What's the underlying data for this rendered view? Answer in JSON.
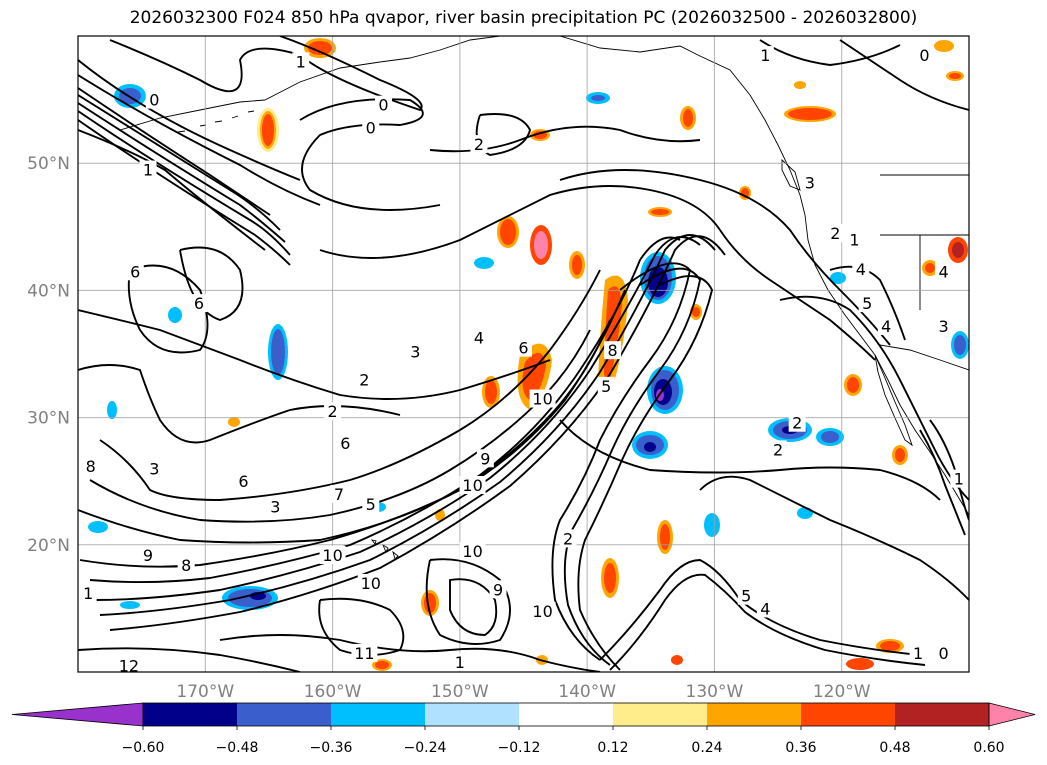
{
  "title": "2026032300 F024 850 hPa qvapor, river basin precipitation PC (2026032500 - 2026032800)",
  "map": {
    "lon_range": [
      180,
      110
    ],
    "lat_range": [
      10,
      60
    ],
    "lat_ticks": [
      {
        "value": 20,
        "label": "20°N"
      },
      {
        "value": 30,
        "label": "30°N"
      },
      {
        "value": 40,
        "label": "40°N"
      },
      {
        "value": 50,
        "label": "50°N"
      }
    ],
    "lon_ticks": [
      {
        "value": 170,
        "label": "170°W"
      },
      {
        "value": 160,
        "label": "160°W"
      },
      {
        "value": 150,
        "label": "150°W"
      },
      {
        "value": 140,
        "label": "140°W"
      },
      {
        "value": 130,
        "label": "130°W"
      },
      {
        "value": 120,
        "label": "120°W"
      }
    ],
    "grid": true
  },
  "colorbar": {
    "colors": [
      "#9932cc",
      "#00008b",
      "#3a5fcd",
      "#00bfff",
      "#b0e2ff",
      "#ffffff",
      "#ffec8b",
      "#ffa500",
      "#ff4500",
      "#b22222",
      "#ff82ab"
    ],
    "tick_labels": [
      "−0.60",
      "−0.48",
      "−0.36",
      "−0.24",
      "−0.12",
      "0.12",
      "0.24",
      "0.36",
      "0.48",
      "0.60"
    ],
    "extend": "both"
  },
  "contour_labels": [
    {
      "text": "1",
      "lon": 162.5,
      "lat": 58
    },
    {
      "text": "0",
      "lon": 174,
      "lat": 55
    },
    {
      "text": "0",
      "lon": 156,
      "lat": 54.6
    },
    {
      "text": "0",
      "lon": 157,
      "lat": 52.8
    },
    {
      "text": "2",
      "lon": 148.5,
      "lat": 51.5
    },
    {
      "text": "1",
      "lon": 174.5,
      "lat": 49.5
    },
    {
      "text": "6",
      "lon": 175.5,
      "lat": 41.5
    },
    {
      "text": "6",
      "lon": 170.5,
      "lat": 39
    },
    {
      "text": "3",
      "lon": 153.5,
      "lat": 35.2
    },
    {
      "text": "2",
      "lon": 157.5,
      "lat": 33
    },
    {
      "text": "4",
      "lon": 148.5,
      "lat": 36.3
    },
    {
      "text": "6",
      "lon": 145,
      "lat": 35.5
    },
    {
      "text": "2",
      "lon": 160,
      "lat": 30.5
    },
    {
      "text": "6",
      "lon": 159,
      "lat": 28
    },
    {
      "text": "3",
      "lon": 174,
      "lat": 26
    },
    {
      "text": "8",
      "lon": 179,
      "lat": 26.2
    },
    {
      "text": "6",
      "lon": 167,
      "lat": 25
    },
    {
      "text": "7",
      "lon": 159.5,
      "lat": 24
    },
    {
      "text": "3",
      "lon": 164.5,
      "lat": 23
    },
    {
      "text": "5",
      "lon": 157,
      "lat": 23.2
    },
    {
      "text": "9",
      "lon": 174.5,
      "lat": 19.2
    },
    {
      "text": "8",
      "lon": 171.5,
      "lat": 18.4
    },
    {
      "text": "10",
      "lon": 160,
      "lat": 19.2
    },
    {
      "text": "10",
      "lon": 157,
      "lat": 17
    },
    {
      "text": "10",
      "lon": 149,
      "lat": 19.5
    },
    {
      "text": "9",
      "lon": 147,
      "lat": 16.5
    },
    {
      "text": "10",
      "lon": 143.5,
      "lat": 14.8
    },
    {
      "text": "11",
      "lon": 157.5,
      "lat": 11.5
    },
    {
      "text": "12",
      "lon": 176,
      "lat": 10.5
    },
    {
      "text": "1",
      "lon": 179.2,
      "lat": 16.2
    },
    {
      "text": "1",
      "lon": 150,
      "lat": 10.8
    },
    {
      "text": "10",
      "lon": 143.5,
      "lat": 31.5
    },
    {
      "text": "9",
      "lon": 148,
      "lat": 26.8
    },
    {
      "text": "10",
      "lon": 149,
      "lat": 24.7
    },
    {
      "text": "5",
      "lon": 138.5,
      "lat": 32.5
    },
    {
      "text": "8",
      "lon": 138,
      "lat": 35.3
    },
    {
      "text": "2",
      "lon": 141.5,
      "lat": 20.5
    },
    {
      "text": "2",
      "lon": 125,
      "lat": 27.5
    },
    {
      "text": "2",
      "lon": 123.5,
      "lat": 29.6
    },
    {
      "text": "3",
      "lon": 122.5,
      "lat": 48.5
    },
    {
      "text": "2",
      "lon": 120.5,
      "lat": 44.5
    },
    {
      "text": "1",
      "lon": 119,
      "lat": 44
    },
    {
      "text": "4",
      "lon": 118.5,
      "lat": 41.7
    },
    {
      "text": "5",
      "lon": 118,
      "lat": 39
    },
    {
      "text": "4",
      "lon": 116.5,
      "lat": 37.2
    },
    {
      "text": "3",
      "lon": 112,
      "lat": 37.2
    },
    {
      "text": "4",
      "lon": 112,
      "lat": 41.5
    },
    {
      "text": "1",
      "lon": 110.8,
      "lat": 25.2
    },
    {
      "text": "5",
      "lon": 127.5,
      "lat": 16
    },
    {
      "text": "4",
      "lon": 126,
      "lat": 15
    },
    {
      "text": "1",
      "lon": 114,
      "lat": 11.5
    },
    {
      "text": "0",
      "lon": 112,
      "lat": 11.5
    },
    {
      "text": "1",
      "lon": 126,
      "lat": 58.5
    },
    {
      "text": "0",
      "lon": 113.5,
      "lat": 58.5
    }
  ]
}
